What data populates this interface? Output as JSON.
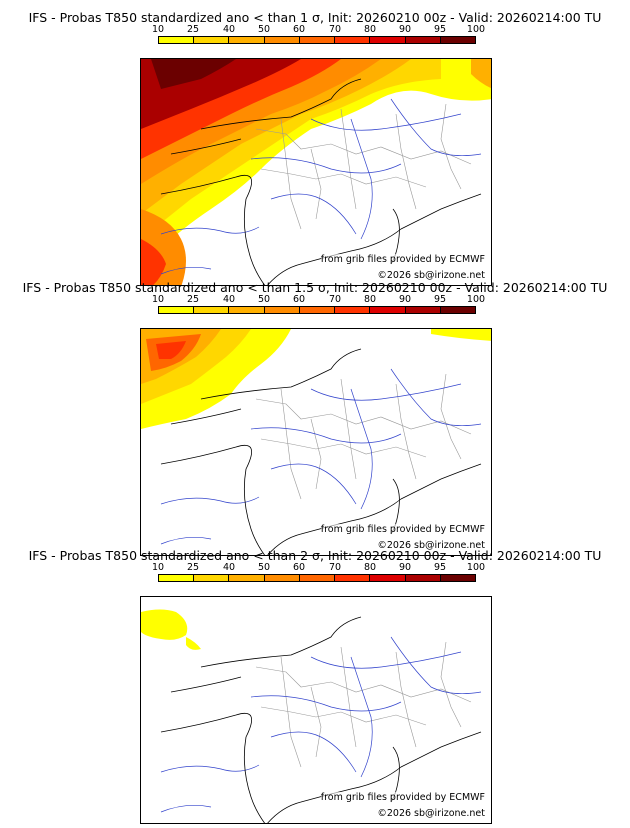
{
  "color_scale": {
    "labels": [
      "10",
      "25",
      "40",
      "50",
      "60",
      "70",
      "80",
      "90",
      "95",
      "100"
    ],
    "colors": [
      "#ffff00",
      "#ffd700",
      "#ffb000",
      "#ff8c00",
      "#ff6600",
      "#ff3300",
      "#dd0000",
      "#aa0000",
      "#6b0000"
    ]
  },
  "panels": [
    {
      "title": "IFS - Probas T850  standardized ano < than 1 σ, Init: 20260210 00z - Valid: 20260214:00 TU",
      "source_note": "from grib files provided by ECMWF",
      "copyright": "©2026 sb@irizone.net",
      "extent": "large"
    },
    {
      "title": "IFS - Probas T850  standardized ano < than 1.5 σ, Init: 20260210 00z - Valid: 20260214:00 TU",
      "source_note": "from grib files provided by ECMWF",
      "copyright": "©2026 sb@irizone.net",
      "extent": "medium"
    },
    {
      "title": "IFS - Probas T850  standardized ano < than 2 σ, Init: 20260210 00z - Valid: 20260214:00 TU",
      "source_note": "from grib files provided by ECMWF",
      "copyright": "©2026 sb@irizone.net",
      "extent": "small"
    }
  ]
}
